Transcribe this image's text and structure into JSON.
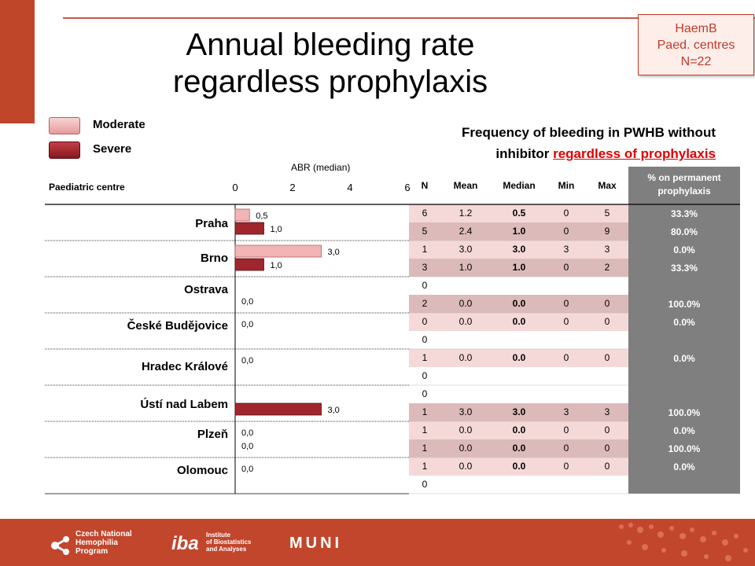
{
  "badge": [
    "HaemB",
    "Paed. centres",
    "N=22"
  ],
  "title_lines": [
    "Annual bleeding rate",
    "regardless prophylaxis"
  ],
  "legend": [
    {
      "label": "Moderate",
      "color": "#f2b5b5"
    },
    {
      "label": "Severe",
      "color": "#a0262e"
    }
  ],
  "freq_title": {
    "line1": "Frequency of bleeding in PWHB without",
    "line2_plain": "inhibitor ",
    "line2_red": "regardless of prophylaxis"
  },
  "table_headers": {
    "centre": "Paediatric centre",
    "N": "N",
    "mean": "Mean",
    "median": "Median",
    "min": "Min",
    "max": "Max",
    "pct": "% on permanent prophylaxis"
  },
  "colors": {
    "moderate": "#f2b5b5",
    "severe": "#a0262e",
    "row_shade": "#f5d9d9",
    "row_shade_dark": "#dcbaba",
    "pct_col": "#7f7f7f",
    "accent": "#c0462a",
    "red_text": "#e00000"
  },
  "chart_data": {
    "type": "bar",
    "orientation": "horizontal",
    "xlabel": "ABR (median)",
    "xticks": [
      "0",
      "2",
      "4",
      "6"
    ],
    "xlim": [
      0,
      6
    ],
    "categories": [
      "Praha",
      "Brno",
      "Ostrava",
      "České Budějovice",
      "Hradec Králové",
      "Ústí nad Labem",
      "Plzeň",
      "Olomouc"
    ],
    "series": [
      {
        "name": "Moderate",
        "values": [
          0.5,
          3.0,
          null,
          0.0,
          0.0,
          null,
          0.0,
          0.0
        ],
        "labels": [
          "0,5",
          "3,0",
          "",
          "0,0",
          "0,0",
          "",
          "0,0",
          "0,0"
        ]
      },
      {
        "name": "Severe",
        "values": [
          1.0,
          1.0,
          0.0,
          null,
          null,
          3.0,
          0.0,
          null
        ],
        "labels": [
          "1,0",
          "1,0",
          "0,0",
          "",
          "",
          "3,0",
          "0,0",
          ""
        ]
      }
    ]
  },
  "table_rows": [
    {
      "N": "6",
      "mean": "1.2",
      "median": "0.5",
      "min": "0",
      "max": "5"
    },
    {
      "N": "5",
      "mean": "2.4",
      "median": "1.0",
      "min": "0",
      "max": "9"
    },
    {
      "N": "1",
      "mean": "3.0",
      "median": "3.0",
      "min": "3",
      "max": "3"
    },
    {
      "N": "3",
      "mean": "1.0",
      "median": "1.0",
      "min": "0",
      "max": "2"
    },
    {
      "N": "0",
      "mean": "",
      "median": "",
      "min": "",
      "max": ""
    },
    {
      "N": "2",
      "mean": "0.0",
      "median": "0.0",
      "min": "0",
      "max": "0"
    },
    {
      "N": "0",
      "mean": "0.0",
      "median": "0.0",
      "min": "0",
      "max": "0"
    },
    {
      "N": "0",
      "mean": "",
      "median": "",
      "min": "",
      "max": ""
    },
    {
      "N": "1",
      "mean": "0.0",
      "median": "0.0",
      "min": "0",
      "max": "0"
    },
    {
      "N": "0",
      "mean": "",
      "median": "",
      "min": "",
      "max": ""
    },
    {
      "N": "0",
      "mean": "",
      "median": "",
      "min": "",
      "max": ""
    },
    {
      "N": "1",
      "mean": "3.0",
      "median": "3.0",
      "min": "3",
      "max": "3"
    },
    {
      "N": "1",
      "mean": "0.0",
      "median": "0.0",
      "min": "0",
      "max": "0"
    },
    {
      "N": "1",
      "mean": "0.0",
      "median": "0.0",
      "min": "0",
      "max": "0"
    },
    {
      "N": "1",
      "mean": "0.0",
      "median": "0.0",
      "min": "0",
      "max": "0"
    },
    {
      "N": "0",
      "mean": "",
      "median": "",
      "min": "",
      "max": ""
    }
  ],
  "pct_values": [
    "33.3%",
    "80.0%",
    "0.0%",
    "33.3%",
    "100.0%",
    "0.0%",
    "0.0%",
    "100.0%",
    "0.0%",
    "100.0%",
    "0.0%"
  ],
  "footer": {
    "logo1_lines": [
      "Czech National",
      "Hemophilia",
      "Program"
    ],
    "logo2_mark": "iba",
    "logo2_lines": [
      "Institute",
      "of Biostatistics",
      "and Analyses"
    ],
    "logo3": "MUNI"
  }
}
